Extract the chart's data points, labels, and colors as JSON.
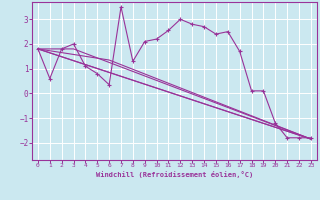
{
  "xlabel": "Windchill (Refroidissement éolien,°C)",
  "bg_color": "#cbe8f0",
  "line_color": "#993399",
  "grid_color": "#ffffff",
  "xlim": [
    -0.5,
    23.5
  ],
  "ylim": [
    -2.7,
    3.7
  ],
  "yticks": [
    -2,
    -1,
    0,
    1,
    2,
    3
  ],
  "xticks": [
    0,
    1,
    2,
    3,
    4,
    5,
    6,
    7,
    8,
    9,
    10,
    11,
    12,
    13,
    14,
    15,
    16,
    17,
    18,
    19,
    20,
    21,
    22,
    23
  ],
  "main_series": {
    "x": [
      0,
      1,
      2,
      3,
      4,
      5,
      6,
      7,
      8,
      9,
      10,
      11,
      12,
      13,
      14,
      15,
      16,
      17,
      18,
      19,
      20,
      21,
      22,
      23
    ],
    "y": [
      1.8,
      0.6,
      1.8,
      2.0,
      1.1,
      0.8,
      0.35,
      3.5,
      1.3,
      2.1,
      2.2,
      2.55,
      3.0,
      2.8,
      2.7,
      2.4,
      2.5,
      1.7,
      0.1,
      0.1,
      -1.2,
      -1.8,
      -1.8,
      -1.8
    ]
  },
  "straight_lines": [
    {
      "x": [
        0,
        23
      ],
      "y": [
        1.8,
        -1.85
      ]
    },
    {
      "x": [
        0,
        23
      ],
      "y": [
        1.8,
        -1.85
      ]
    },
    {
      "x": [
        0,
        6,
        23
      ],
      "y": [
        1.8,
        1.35,
        -1.85
      ]
    },
    {
      "x": [
        0,
        3,
        23
      ],
      "y": [
        1.8,
        1.8,
        -1.85
      ]
    }
  ]
}
